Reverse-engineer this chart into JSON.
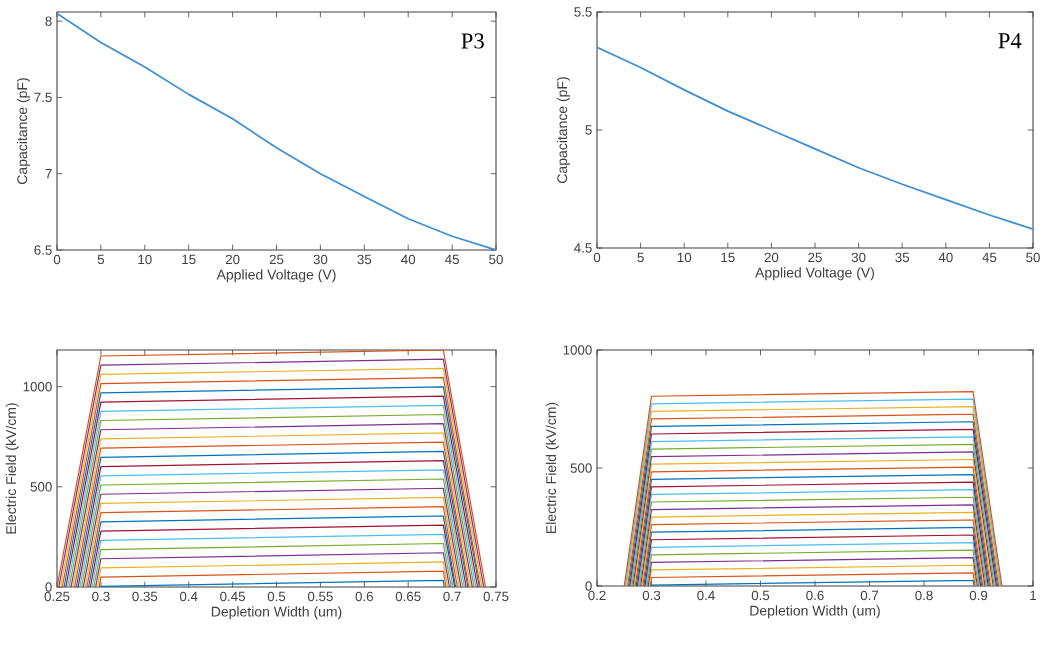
{
  "chart_data": [
    {
      "type": "line",
      "xlabel": "Applied Voltage (V)",
      "ylabel": "Capacitance (pF)",
      "annotations": [
        "P3"
      ],
      "xlim": [
        0,
        50
      ],
      "ylim": [
        6.5,
        8.06
      ],
      "xticks": [
        0,
        5,
        10,
        15,
        20,
        25,
        30,
        35,
        40,
        45,
        50
      ],
      "yticks": [
        6.5,
        7,
        7.5,
        8
      ],
      "marker": "none",
      "x": [
        0,
        5,
        10,
        15,
        20,
        25,
        30,
        35,
        40,
        45,
        50
      ],
      "series": [
        {
          "color": "#3d8fd4",
          "values": [
            8.05,
            7.86,
            7.7,
            7.52,
            7.36,
            7.17,
            7.0,
            6.85,
            6.705,
            6.59,
            6.5
          ]
        }
      ]
    },
    {
      "type": "line",
      "xlabel": "Applied Voltage (V)",
      "ylabel": "Capacitance (pF)",
      "annotations": [
        "P4"
      ],
      "xlim": [
        0,
        50
      ],
      "ylim": [
        4.5,
        5.5
      ],
      "xticks": [
        0,
        5,
        10,
        15,
        20,
        25,
        30,
        35,
        40,
        45,
        50
      ],
      "yticks": [
        4.5,
        5,
        5.5
      ],
      "marker": "none",
      "x": [
        0,
        5,
        10,
        15,
        20,
        25,
        30,
        35,
        40,
        45,
        50
      ],
      "series": [
        {
          "color": "#3d8fd4",
          "values": [
            5.35,
            5.265,
            5.17,
            5.08,
            5.0,
            4.92,
            4.84,
            4.77,
            4.705,
            4.64,
            4.58
          ]
        }
      ]
    },
    {
      "type": "line",
      "xlabel": "Depletion Width (um)",
      "ylabel": "Electric Field (kV/cm)",
      "xlim": [
        0.25,
        0.75
      ],
      "ylim": [
        0,
        1183
      ],
      "xticks": [
        0.25,
        0.3,
        0.35,
        0.4,
        0.45,
        0.5,
        0.55,
        0.6,
        0.65,
        0.7,
        0.75
      ],
      "yticks": [
        0,
        500,
        1000
      ],
      "marker": "none",
      "series": [
        {
          "color": "#0072bd",
          "x": [
            0.3,
            0.3,
            0.69,
            0.691
          ],
          "values": [
            0,
            3,
            33,
            0
          ]
        },
        {
          "color": "#d95319",
          "x": [
            0.298,
            0.3,
            0.69,
            0.693
          ],
          "values": [
            0,
            49,
            79,
            0
          ]
        },
        {
          "color": "#edb120",
          "x": [
            0.296,
            0.3,
            0.69,
            0.695
          ],
          "values": [
            0,
            95,
            125,
            0
          ]
        },
        {
          "color": "#7e2f8e",
          "x": [
            0.294,
            0.3,
            0.69,
            0.697
          ],
          "values": [
            0,
            141,
            171,
            0
          ]
        },
        {
          "color": "#77ac30",
          "x": [
            0.292,
            0.3,
            0.69,
            0.699
          ],
          "values": [
            0,
            187,
            217,
            0
          ]
        },
        {
          "color": "#4dbeee",
          "x": [
            0.29,
            0.3,
            0.69,
            0.701
          ],
          "values": [
            0,
            233,
            263,
            0
          ]
        },
        {
          "color": "#a2142f",
          "x": [
            0.288,
            0.3,
            0.69,
            0.703
          ],
          "values": [
            0,
            279,
            309,
            0
          ]
        },
        {
          "color": "#0072bd",
          "x": [
            0.286,
            0.3,
            0.69,
            0.704
          ],
          "values": [
            0,
            325,
            355,
            0
          ]
        },
        {
          "color": "#d95319",
          "x": [
            0.284,
            0.3,
            0.69,
            0.706
          ],
          "values": [
            0,
            371,
            401,
            0
          ]
        },
        {
          "color": "#edb120",
          "x": [
            0.282,
            0.3,
            0.69,
            0.708
          ],
          "values": [
            0,
            417,
            447,
            0
          ]
        },
        {
          "color": "#7e2f8e",
          "x": [
            0.28,
            0.3,
            0.69,
            0.71
          ],
          "values": [
            0,
            463,
            493,
            0
          ]
        },
        {
          "color": "#77ac30",
          "x": [
            0.278,
            0.3,
            0.69,
            0.712
          ],
          "values": [
            0,
            509,
            539,
            0
          ]
        },
        {
          "color": "#4dbeee",
          "x": [
            0.276,
            0.3,
            0.69,
            0.714
          ],
          "values": [
            0,
            555,
            585,
            0
          ]
        },
        {
          "color": "#a2142f",
          "x": [
            0.274,
            0.3,
            0.69,
            0.716
          ],
          "values": [
            0,
            601,
            631,
            0
          ]
        },
        {
          "color": "#0072bd",
          "x": [
            0.272,
            0.3,
            0.69,
            0.718
          ],
          "values": [
            0,
            647,
            677,
            0
          ]
        },
        {
          "color": "#d95319",
          "x": [
            0.27,
            0.3,
            0.69,
            0.719
          ],
          "values": [
            0,
            693,
            723,
            0
          ]
        },
        {
          "color": "#edb120",
          "x": [
            0.268,
            0.3,
            0.69,
            0.721
          ],
          "values": [
            0,
            739,
            769,
            0
          ]
        },
        {
          "color": "#7e2f8e",
          "x": [
            0.266,
            0.3,
            0.69,
            0.723
          ],
          "values": [
            0,
            785,
            815,
            0
          ]
        },
        {
          "color": "#77ac30",
          "x": [
            0.264,
            0.3,
            0.69,
            0.725
          ],
          "values": [
            0,
            831,
            861,
            0
          ]
        },
        {
          "color": "#4dbeee",
          "x": [
            0.262,
            0.3,
            0.69,
            0.727
          ],
          "values": [
            0,
            877,
            907,
            0
          ]
        },
        {
          "color": "#a2142f",
          "x": [
            0.26,
            0.3,
            0.69,
            0.729
          ],
          "values": [
            0,
            923,
            953,
            0
          ]
        },
        {
          "color": "#0072bd",
          "x": [
            0.258,
            0.3,
            0.69,
            0.731
          ],
          "values": [
            0,
            969,
            999,
            0
          ]
        },
        {
          "color": "#d95319",
          "x": [
            0.256,
            0.3,
            0.69,
            0.732
          ],
          "values": [
            0,
            1015,
            1045,
            0
          ]
        },
        {
          "color": "#edb120",
          "x": [
            0.254,
            0.3,
            0.69,
            0.734
          ],
          "values": [
            0,
            1061,
            1091,
            0
          ]
        },
        {
          "color": "#7e2f8e",
          "x": [
            0.252,
            0.3,
            0.69,
            0.736
          ],
          "values": [
            0,
            1107,
            1137,
            0
          ]
        },
        {
          "color": "#d95319",
          "x": [
            0.25,
            0.3,
            0.69,
            0.738
          ],
          "values": [
            0,
            1153,
            1183,
            0
          ]
        }
      ]
    },
    {
      "type": "line",
      "xlabel": "Depletion Width (um)",
      "ylabel": "Electric Field (kV/cm)",
      "xlim": [
        0.2,
        1
      ],
      "ylim": [
        0,
        1000
      ],
      "xticks": [
        0.2,
        0.3,
        0.4,
        0.5,
        0.6,
        0.7,
        0.8,
        0.9,
        1
      ],
      "yticks": [
        0,
        500,
        1000
      ],
      "marker": "none",
      "series": [
        {
          "color": "#0072bd",
          "x": [
            0.3,
            0.3,
            0.89,
            0.892
          ],
          "values": [
            0,
            4,
            24,
            0
          ]
        },
        {
          "color": "#d95319",
          "x": [
            0.298,
            0.3,
            0.89,
            0.894
          ],
          "values": [
            0,
            36,
            56,
            0
          ]
        },
        {
          "color": "#edb120",
          "x": [
            0.296,
            0.3,
            0.89,
            0.896
          ],
          "values": [
            0,
            68,
            88,
            0
          ]
        },
        {
          "color": "#7e2f8e",
          "x": [
            0.294,
            0.3,
            0.89,
            0.898
          ],
          "values": [
            0,
            100,
            120,
            0
          ]
        },
        {
          "color": "#77ac30",
          "x": [
            0.292,
            0.3,
            0.89,
            0.9
          ],
          "values": [
            0,
            132,
            152,
            0
          ]
        },
        {
          "color": "#4dbeee",
          "x": [
            0.29,
            0.3,
            0.89,
            0.902
          ],
          "values": [
            0,
            164,
            184,
            0
          ]
        },
        {
          "color": "#a2142f",
          "x": [
            0.288,
            0.3,
            0.89,
            0.904
          ],
          "values": [
            0,
            196,
            216,
            0
          ]
        },
        {
          "color": "#0072bd",
          "x": [
            0.286,
            0.3,
            0.89,
            0.906
          ],
          "values": [
            0,
            228,
            248,
            0
          ]
        },
        {
          "color": "#d95319",
          "x": [
            0.284,
            0.3,
            0.89,
            0.908
          ],
          "values": [
            0,
            260,
            280,
            0
          ]
        },
        {
          "color": "#edb120",
          "x": [
            0.282,
            0.3,
            0.89,
            0.91
          ],
          "values": [
            0,
            292,
            312,
            0
          ]
        },
        {
          "color": "#7e2f8e",
          "x": [
            0.28,
            0.3,
            0.89,
            0.912
          ],
          "values": [
            0,
            324,
            344,
            0
          ]
        },
        {
          "color": "#77ac30",
          "x": [
            0.278,
            0.3,
            0.89,
            0.914
          ],
          "values": [
            0,
            356,
            376,
            0
          ]
        },
        {
          "color": "#4dbeee",
          "x": [
            0.276,
            0.3,
            0.89,
            0.916
          ],
          "values": [
            0,
            388,
            408,
            0
          ]
        },
        {
          "color": "#a2142f",
          "x": [
            0.274,
            0.3,
            0.89,
            0.918
          ],
          "values": [
            0,
            420,
            440,
            0
          ]
        },
        {
          "color": "#0072bd",
          "x": [
            0.272,
            0.3,
            0.89,
            0.92
          ],
          "values": [
            0,
            452,
            472,
            0
          ]
        },
        {
          "color": "#d95319",
          "x": [
            0.27,
            0.3,
            0.89,
            0.922
          ],
          "values": [
            0,
            484,
            504,
            0
          ]
        },
        {
          "color": "#edb120",
          "x": [
            0.268,
            0.3,
            0.89,
            0.924
          ],
          "values": [
            0,
            516,
            536,
            0
          ]
        },
        {
          "color": "#7e2f8e",
          "x": [
            0.266,
            0.3,
            0.89,
            0.927
          ],
          "values": [
            0,
            548,
            568,
            0
          ]
        },
        {
          "color": "#77ac30",
          "x": [
            0.264,
            0.3,
            0.89,
            0.929
          ],
          "values": [
            0,
            580,
            600,
            0
          ]
        },
        {
          "color": "#4dbeee",
          "x": [
            0.262,
            0.3,
            0.89,
            0.931
          ],
          "values": [
            0,
            612,
            632,
            0
          ]
        },
        {
          "color": "#a2142f",
          "x": [
            0.26,
            0.3,
            0.89,
            0.933
          ],
          "values": [
            0,
            644,
            664,
            0
          ]
        },
        {
          "color": "#0072bd",
          "x": [
            0.258,
            0.3,
            0.89,
            0.935
          ],
          "values": [
            0,
            676,
            696,
            0
          ]
        },
        {
          "color": "#d95319",
          "x": [
            0.256,
            0.3,
            0.89,
            0.937
          ],
          "values": [
            0,
            708,
            728,
            0
          ]
        },
        {
          "color": "#edb120",
          "x": [
            0.254,
            0.3,
            0.89,
            0.939
          ],
          "values": [
            0,
            740,
            760,
            0
          ]
        },
        {
          "color": "#4dbeee",
          "x": [
            0.252,
            0.3,
            0.89,
            0.941
          ],
          "values": [
            0,
            772,
            792,
            0
          ]
        },
        {
          "color": "#d95319",
          "x": [
            0.25,
            0.3,
            0.89,
            0.943
          ],
          "values": [
            0,
            804,
            824,
            0
          ]
        }
      ]
    }
  ]
}
